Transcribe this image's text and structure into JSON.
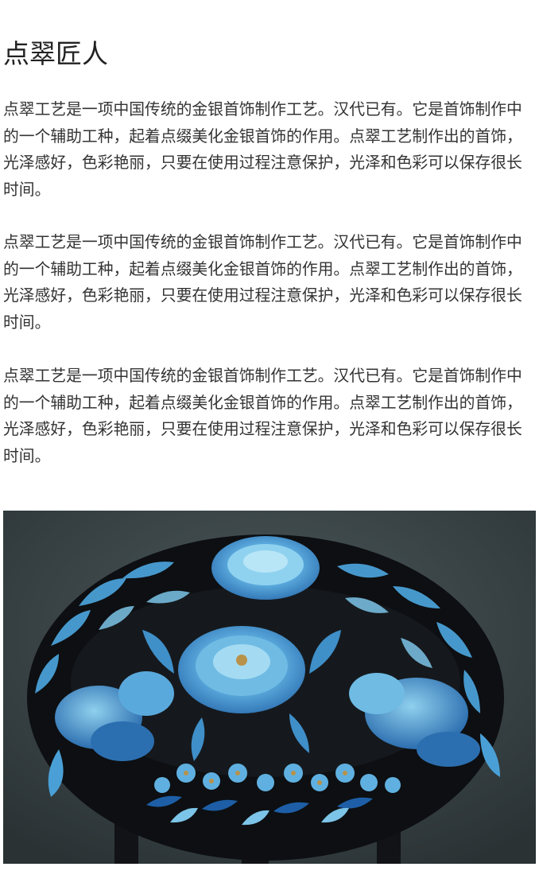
{
  "article": {
    "title": "点翠匠人",
    "paragraphs": [
      "点翠工艺是一项中国传统的金银首饰制作工艺。汉代已有。它是首饰制作中的一个辅助工种，起着点缀美化金银首饰的作用。点翠工艺制作出的首饰，光泽感好，色彩艳丽，只要在使用过程注意保护，光泽和色彩可以保存很长时间。",
      "点翠工艺是一项中国传统的金银首饰制作工艺。汉代已有。它是首饰制作中的一个辅助工种，起着点缀美化金银首饰的作用。点翠工艺制作出的首饰，光泽感好，色彩艳丽，只要在使用过程注意保护，光泽和色彩可以保存很长时间。",
      "点翠工艺是一项中国传统的金银首饰制作工艺。汉代已有。它是首饰制作中的一个辅助工种，起着点缀美化金银首饰的作用。点翠工艺制作出的首饰，光泽感好，色彩艳丽，只要在使用过程注意保护，光泽和色彩可以保存很长时间。"
    ]
  },
  "image": {
    "subject": "kingfisher-feather-headdress",
    "colors": {
      "background": "#3a4446",
      "frame": "#0d0f12",
      "feather_light": "#7cc4e8",
      "feather_mid": "#3f8fc9",
      "feather_deep": "#1d5ea6",
      "gold": "#b8924a"
    }
  }
}
